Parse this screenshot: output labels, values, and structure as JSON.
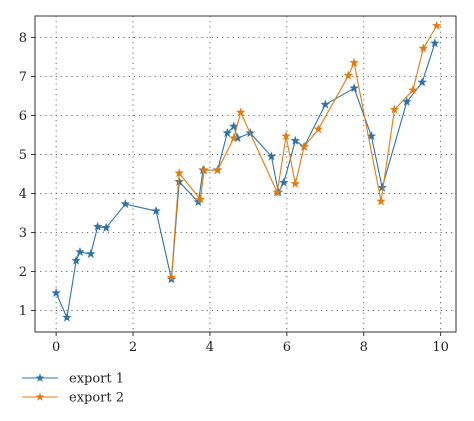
{
  "chart_data": {
    "type": "line",
    "title": "",
    "xlabel": "",
    "ylabel": "",
    "xlim": [
      -0.55,
      10.4
    ],
    "ylim": [
      0.45,
      8.55
    ],
    "xticks": [
      0,
      2,
      4,
      6,
      8,
      10
    ],
    "yticks": [
      1,
      2,
      3,
      4,
      5,
      6,
      7,
      8
    ],
    "xtick_labels": [
      "0",
      "2",
      "4",
      "6",
      "8",
      "10"
    ],
    "ytick_labels": [
      "1",
      "2",
      "3",
      "4",
      "5",
      "6",
      "7",
      "8"
    ],
    "grid": "dotted",
    "legend_position": "bottom-left-outside",
    "series": [
      {
        "name": "export 1",
        "color": "#2e73a8",
        "marker": "star",
        "x": [
          0.0,
          0.28,
          0.52,
          0.62,
          0.9,
          1.08,
          1.3,
          1.8,
          2.6,
          3.0,
          3.2,
          3.7,
          3.82,
          4.2,
          4.45,
          4.62,
          4.72,
          5.05,
          5.6,
          5.78,
          5.92,
          6.22,
          6.45,
          7.0,
          7.75,
          8.2,
          8.48,
          9.12,
          9.52,
          9.85
        ],
        "y": [
          1.45,
          0.82,
          2.28,
          2.5,
          2.45,
          3.15,
          3.12,
          3.73,
          3.55,
          1.8,
          4.3,
          3.78,
          4.6,
          4.6,
          5.55,
          5.72,
          5.42,
          5.55,
          4.95,
          4.03,
          4.28,
          5.35,
          5.2,
          6.28,
          6.7,
          5.47,
          4.15,
          6.35,
          6.85,
          7.85
        ]
      },
      {
        "name": "export 2",
        "color": "#e07d10",
        "marker": "star",
        "x": [
          3.0,
          3.2,
          3.75,
          3.85,
          4.2,
          4.62,
          4.8,
          5.75,
          5.98,
          6.22,
          6.45,
          6.82,
          7.6,
          7.75,
          8.45,
          8.8,
          9.28,
          9.55,
          9.9
        ],
        "y": [
          1.85,
          4.52,
          3.85,
          4.6,
          4.6,
          5.42,
          6.08,
          4.03,
          5.47,
          4.25,
          5.2,
          5.65,
          7.02,
          7.35,
          3.8,
          6.15,
          6.65,
          7.72,
          8.3
        ]
      }
    ]
  }
}
